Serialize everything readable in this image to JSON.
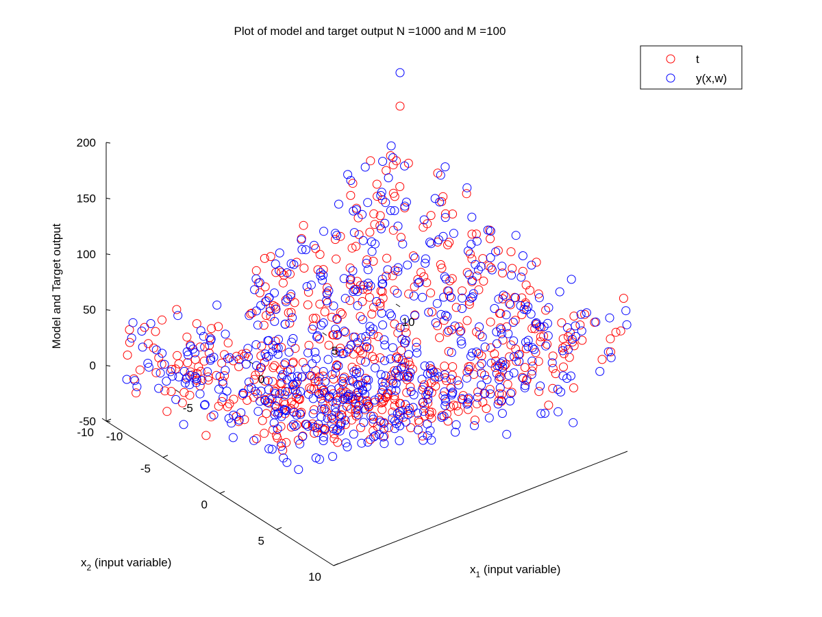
{
  "chart_data": {
    "type": "scatter",
    "title": "Plot of model and target output N =1000 and M =100",
    "xlabel": "x",
    "xlabel_sub": "1",
    "xlabel_rest": " (input variable)",
    "ylabel": "x",
    "ylabel_sub": "2",
    "ylabel_rest": " (input variable)",
    "zlabel": "Model and Target output",
    "xlim": [
      -10,
      10
    ],
    "ylim": [
      -10,
      10
    ],
    "zlim": [
      -50,
      200
    ],
    "xticks": [
      -10,
      -5,
      0,
      5,
      10
    ],
    "yticks": [
      -10,
      -5,
      0,
      5,
      10
    ],
    "zticks": [
      -50,
      0,
      50,
      100,
      150,
      200
    ],
    "xtick_labels": [
      "-10",
      "-5",
      "0",
      "5",
      "10"
    ],
    "ytick_labels": [
      "-10",
      "-5",
      "0",
      "5",
      "10"
    ],
    "ztick_labels": [
      "-50",
      "0",
      "50",
      "100",
      "150",
      "200"
    ],
    "grid": false,
    "legend_position": "top-right",
    "sample_points_per_series": 1000,
    "series": [
      {
        "name": "t",
        "color": "#ff0000",
        "marker": "circle-open",
        "sample_points": [
          [
            -10,
            10,
            157
          ],
          [
            -9,
            9,
            145
          ],
          [
            -8,
            7,
            118
          ],
          [
            -6,
            6,
            95
          ],
          [
            -4,
            4,
            70
          ],
          [
            -2,
            2,
            50
          ],
          [
            0,
            0,
            35
          ],
          [
            2,
            -2,
            18
          ],
          [
            4,
            -4,
            20
          ],
          [
            6,
            -6,
            40
          ],
          [
            8,
            -8,
            75
          ],
          [
            10,
            -10,
            130
          ],
          [
            0,
            -8,
            45
          ],
          [
            5,
            5,
            20
          ],
          [
            -5,
            -5,
            15
          ]
        ]
      },
      {
        "name": "y(x,w)",
        "color": "#0000ff",
        "marker": "circle-open",
        "sample_points": [
          [
            -10,
            10,
            183
          ],
          [
            -9,
            9,
            160
          ],
          [
            -8,
            6,
            120
          ],
          [
            -6,
            5,
            88
          ],
          [
            -4,
            3,
            64
          ],
          [
            -2,
            1,
            45
          ],
          [
            0,
            0,
            30
          ],
          [
            2,
            -1,
            15
          ],
          [
            4,
            -3,
            18
          ],
          [
            6,
            -5,
            38
          ],
          [
            8,
            -7,
            70
          ],
          [
            10,
            -10,
            160
          ],
          [
            1,
            -9,
            35
          ],
          [
            6,
            6,
            10
          ],
          [
            -6,
            -6,
            10
          ]
        ]
      }
    ]
  }
}
